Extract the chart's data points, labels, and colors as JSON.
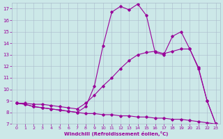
{
  "xlabel": "Windchill (Refroidissement éolien,°C)",
  "background_color": "#cce8e8",
  "line_color": "#990099",
  "grid_color": "#aabbcc",
  "xlim_min": -0.5,
  "xlim_max": 23.5,
  "ylim_min": 7.0,
  "ylim_max": 17.5,
  "xticks": [
    0,
    1,
    2,
    3,
    4,
    5,
    6,
    7,
    8,
    9,
    10,
    11,
    12,
    13,
    14,
    15,
    16,
    17,
    18,
    19,
    20,
    21,
    22,
    23
  ],
  "yticks": [
    7,
    8,
    9,
    10,
    11,
    12,
    13,
    14,
    15,
    16,
    17
  ],
  "line1_x": [
    0,
    1,
    2,
    3,
    4,
    5,
    6,
    7,
    8,
    9,
    10,
    11,
    12,
    13,
    14,
    15,
    16,
    17,
    18,
    19,
    20,
    21,
    22,
    23
  ],
  "line1_y": [
    8.8,
    8.7,
    8.5,
    8.4,
    8.3,
    8.2,
    8.1,
    8.0,
    7.9,
    7.9,
    7.8,
    7.8,
    7.7,
    7.7,
    7.6,
    7.6,
    7.5,
    7.5,
    7.4,
    7.4,
    7.3,
    7.2,
    7.1,
    7.0
  ],
  "line2_x": [
    0,
    1,
    2,
    3,
    4,
    5,
    6,
    7,
    8,
    9,
    10,
    11,
    12,
    13,
    14,
    15,
    16,
    17,
    18,
    19,
    20,
    21,
    22,
    23
  ],
  "line2_y": [
    8.8,
    8.8,
    8.7,
    8.7,
    8.6,
    8.5,
    8.4,
    8.3,
    8.8,
    9.5,
    10.3,
    11.0,
    11.8,
    12.5,
    13.0,
    13.2,
    13.3,
    13.1,
    13.3,
    13.5,
    13.5,
    11.9,
    9.0,
    7.0
  ],
  "line3_x": [
    0,
    1,
    2,
    3,
    4,
    5,
    6,
    7,
    8,
    9,
    10,
    11,
    12,
    13,
    14,
    15,
    16,
    17,
    18,
    19,
    20,
    21,
    22,
    23
  ],
  "line3_y": [
    8.8,
    8.7,
    8.5,
    8.4,
    8.3,
    8.2,
    8.1,
    8.0,
    8.5,
    10.3,
    13.8,
    16.7,
    17.2,
    16.9,
    17.4,
    16.4,
    13.2,
    13.0,
    14.6,
    15.0,
    13.5,
    11.8,
    9.0,
    7.0
  ],
  "marker": "D",
  "markersize": 1.8,
  "linewidth": 0.8
}
